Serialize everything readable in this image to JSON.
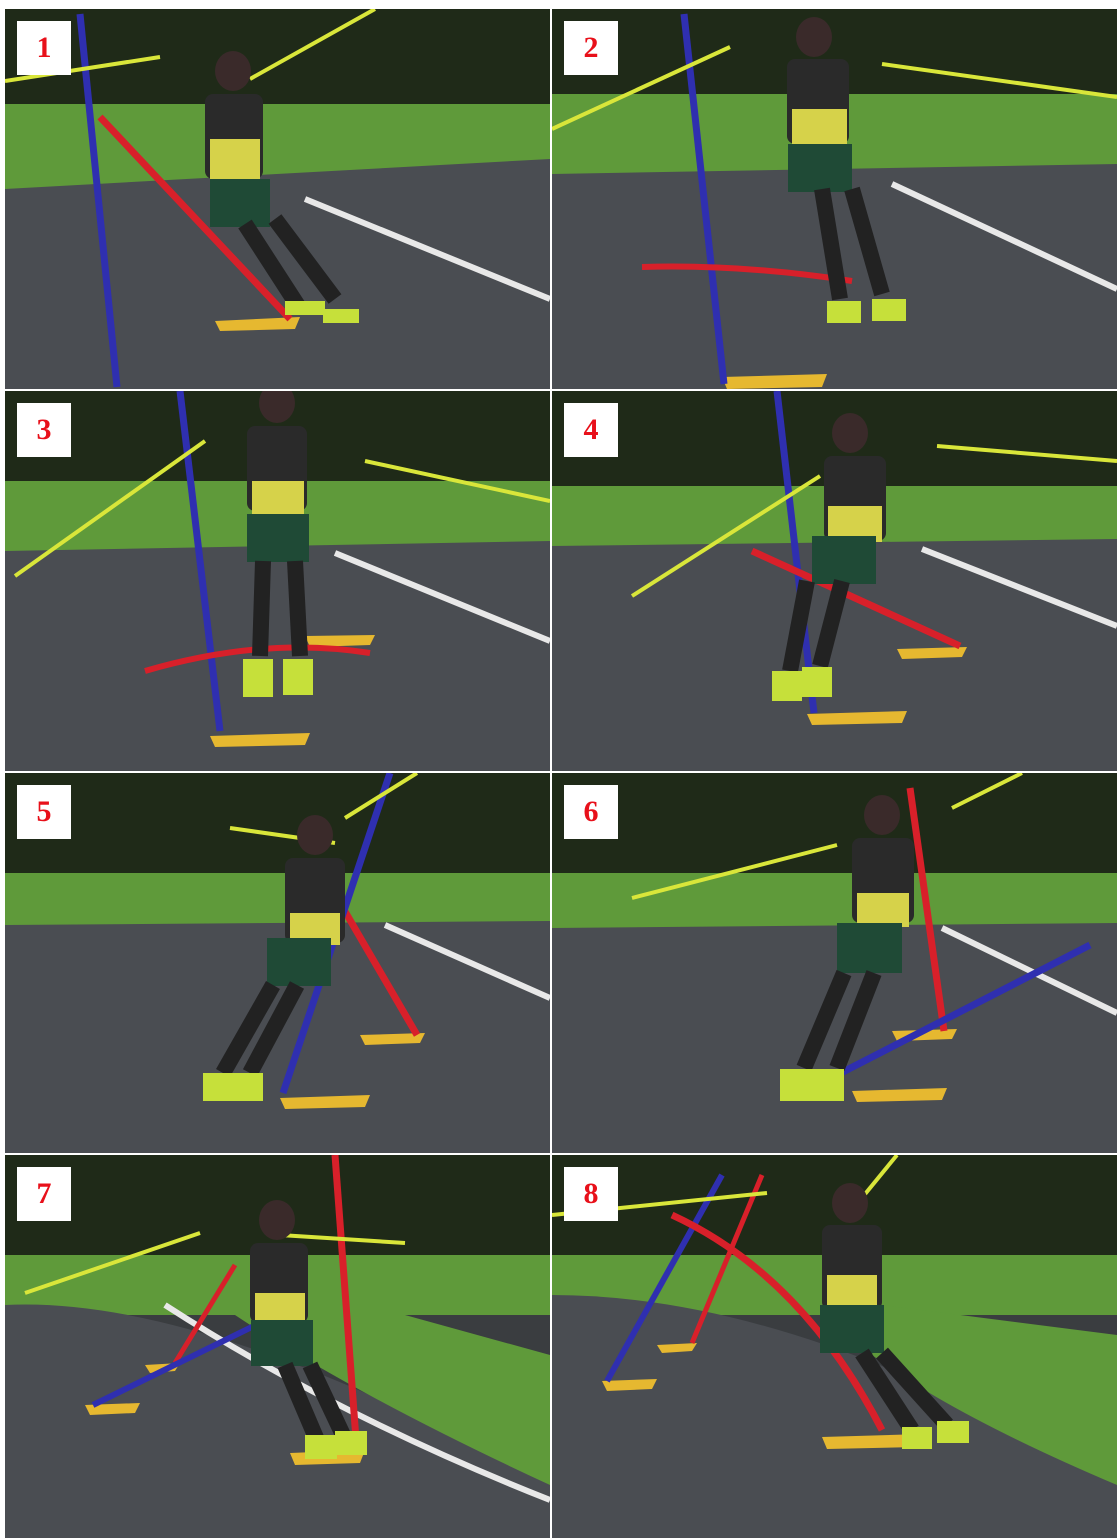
{
  "frames": [
    {
      "label": "1",
      "slalom_gate_color": "#2f2fb0",
      "knocked_gate_color": "#d8202a"
    },
    {
      "label": "2",
      "slalom_gate_color": "#2f2fb0",
      "knocked_gate_color": "#d8202a"
    },
    {
      "label": "3",
      "slalom_gate_color": "#2f2fb0",
      "knocked_gate_color": "#d8202a"
    },
    {
      "label": "4",
      "slalom_gate_color": "#2f2fb0",
      "knocked_gate_color": "#d8202a"
    },
    {
      "label": "5",
      "slalom_gate_color": "#2f2fb0",
      "knocked_gate_color": "#d8202a"
    },
    {
      "label": "6",
      "slalom_gate_color": "#d8202a",
      "knocked_gate_color": "#2f2fb0"
    },
    {
      "label": "7",
      "slalom_gate_color": "#d8202a",
      "knocked_gate_color": "#2f2fb0"
    },
    {
      "label": "8",
      "slalom_gate_color": "#d8202a",
      "knocked_gate_color": "#2f2fb0"
    }
  ],
  "colors": {
    "label_text": "#e8101a",
    "label_background": "#ffffff",
    "asphalt": "#4a4d52",
    "grass": "#5f9a3a",
    "trees": "#1f2a18",
    "jersey": "#d6d24a",
    "shorts": "#1f4a36",
    "pole_shaft": "#d9e63a",
    "gate_base": "#e6b830"
  }
}
